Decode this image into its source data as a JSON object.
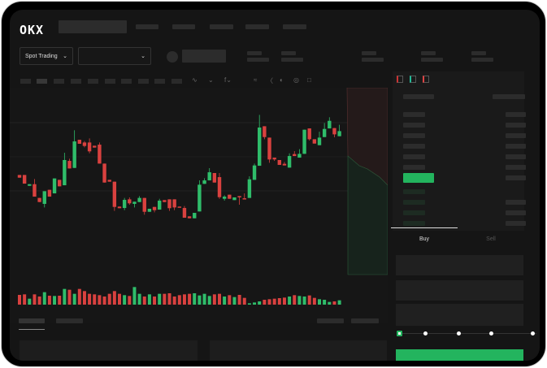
{
  "header": {
    "logo": "OKX"
  },
  "controls": {
    "market_type": "Spot Trading",
    "pair_select": ""
  },
  "icons": {
    "dropdown": "chevron-down-icon",
    "toolbar": [
      "line-type-icon",
      "indicator-icon",
      "formula-icon",
      "trend-line-icon",
      "ruler-icon",
      "camera-icon",
      "settings-icon",
      "fullscreen-icon"
    ],
    "orderbook_views": [
      "orderbook-both-icon",
      "orderbook-buy-icon",
      "orderbook-sell-icon"
    ]
  },
  "order_form": {
    "tabs": [
      {
        "label": "Buy",
        "active": true
      },
      {
        "label": "Sell",
        "active": false
      }
    ],
    "leverage_slider_fraction": 0
  },
  "colors": {
    "up": "#2fbd6a",
    "down": "#d9413f",
    "accent": "#23b45e",
    "background": "#151515"
  },
  "chart_data": {
    "type": "candlestick",
    "candles": [
      [
        47.5,
        47.5,
        45,
        45
      ],
      [
        47.5,
        47.5,
        39.5,
        39.5
      ],
      [
        37.5,
        39,
        37.5,
        39
      ],
      [
        39,
        43.8,
        27.5,
        27.5
      ],
      [
        26.3,
        26.3,
        22.5,
        22.5
      ],
      [
        20.8,
        32.5,
        17.5,
        32.5
      ],
      [
        33.8,
        33.8,
        27.5,
        27.5
      ],
      [
        30.5,
        44.3,
        30.5,
        44.3
      ],
      [
        43,
        43,
        37,
        37
      ],
      [
        38,
        68,
        38,
        61.3
      ],
      [
        60.5,
        62.5,
        53.5,
        53.5
      ],
      [
        54,
        88.8,
        54,
        78.5
      ],
      [
        80,
        80,
        76.3,
        76.3
      ],
      [
        77.5,
        78.8,
        73,
        74.3
      ],
      [
        77.5,
        81.3,
        67.5,
        69.3
      ],
      [
        74.5,
        74.5,
        72.8,
        72.8
      ],
      [
        75.5,
        77.5,
        58,
        58
      ],
      [
        58,
        58,
        40.5,
        40.5
      ],
      [
        43,
        43,
        41.3,
        41.3
      ],
      [
        41.3,
        41.3,
        14.3,
        18
      ],
      [
        18.3,
        18.3,
        16.8,
        16.8
      ],
      [
        17,
        26.3,
        15,
        24.5
      ],
      [
        25,
        26.8,
        20,
        21.3
      ],
      [
        20.8,
        22.8,
        17.5,
        22.8
      ],
      [
        22.5,
        28,
        22.5,
        26.3
      ],
      [
        26.3,
        26.3,
        10.8,
        13.5
      ],
      [
        13.5,
        16.3,
        13.5,
        16.3
      ],
      [
        18,
        18,
        13,
        15
      ],
      [
        15.5,
        25.5,
        15.5,
        23.8
      ],
      [
        24.3,
        24.3,
        22.5,
        22.5
      ],
      [
        25,
        25,
        14.3,
        16.8
      ],
      [
        25,
        25,
        15,
        17.5
      ],
      [
        18.3,
        18.3,
        17.5,
        17.5
      ],
      [
        17,
        18.8,
        8,
        8
      ],
      [
        9.3,
        9.3,
        7.5,
        7.5
      ],
      [
        7.5,
        12.5,
        7.5,
        12.5
      ],
      [
        13.8,
        42.5,
        13.8,
        38.5
      ],
      [
        39.3,
        44.5,
        39.3,
        42.5
      ],
      [
        42.5,
        53.8,
        42.5,
        50
      ],
      [
        49.3,
        49.3,
        40.5,
        40.5
      ],
      [
        45.5,
        49.3,
        25.5,
        27
      ],
      [
        25.5,
        28.8,
        23.8,
        27.5
      ],
      [
        29.3,
        29.3,
        25.5,
        25.5
      ],
      [
        24.3,
        26.8,
        24.3,
        26.8
      ],
      [
        28,
        28,
        20,
        26.8
      ],
      [
        26,
        30.5,
        25,
        25
      ],
      [
        26.3,
        46.3,
        26.3,
        43.5
      ],
      [
        43,
        58,
        43,
        56.3
      ],
      [
        56,
        103,
        56,
        91.3
      ],
      [
        92.5,
        92.5,
        80.5,
        82.5
      ],
      [
        82,
        82,
        58.8,
        61.8
      ],
      [
        63.5,
        63.5,
        60.5,
        61.8
      ],
      [
        61.3,
        61.3,
        56.8,
        56.8
      ],
      [
        57.8,
        59.5,
        56.3,
        56.3
      ],
      [
        54.3,
        67.5,
        54.3,
        65
      ],
      [
        66.8,
        69.5,
        65,
        65
      ],
      [
        63.5,
        71.3,
        63.5,
        67
      ],
      [
        67,
        89.3,
        67,
        89.3
      ],
      [
        90.5,
        90.5,
        79.3,
        80.5
      ],
      [
        80.5,
        80.5,
        76.5,
        76.5
      ],
      [
        75,
        87.5,
        75,
        82
      ],
      [
        82.5,
        95.5,
        82.5,
        90
      ],
      [
        90.5,
        100.8,
        90.5,
        97.5
      ],
      [
        90.8,
        90.8,
        82.3,
        85
      ],
      [
        83.3,
        93.8,
        83.3,
        88
      ]
    ],
    "candle_fields": [
      "open",
      "high",
      "low",
      "close"
    ],
    "volume": [
      36,
      38,
      22,
      38,
      30,
      46,
      33,
      32,
      33,
      58,
      55,
      40,
      58,
      50,
      40,
      38,
      35,
      30,
      40,
      50,
      40,
      35,
      32,
      65,
      40,
      30,
      38,
      30,
      40,
      40,
      42,
      30,
      35,
      38,
      40,
      42,
      34,
      40,
      32,
      38,
      40,
      30,
      35,
      28,
      36,
      25,
      5,
      8,
      12,
      18,
      20,
      22,
      24,
      26,
      30,
      35,
      32,
      30,
      34,
      25,
      20,
      18,
      10,
      12,
      16
    ],
    "ylim": [
      0,
      110
    ],
    "grid": true
  }
}
